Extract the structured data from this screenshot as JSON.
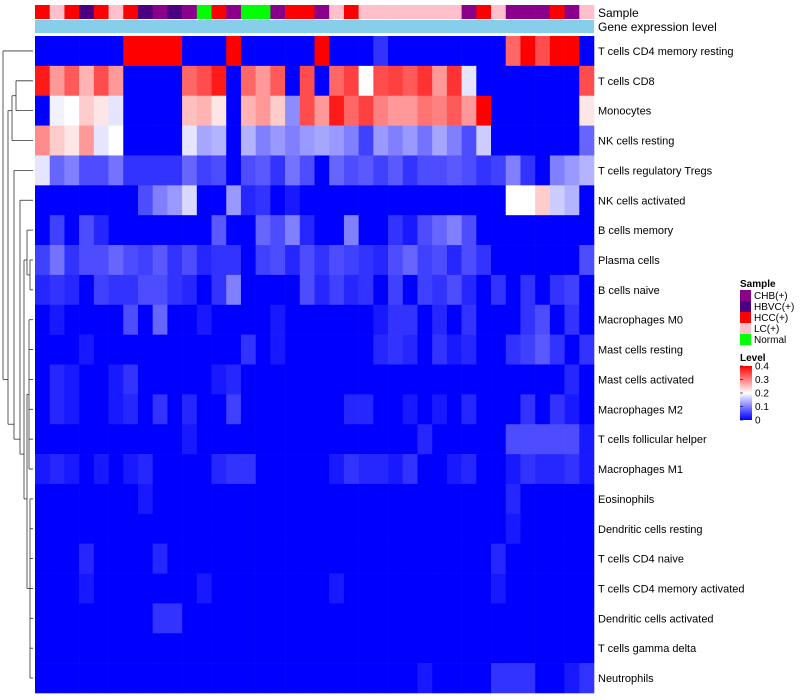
{
  "chart_data": {
    "type": "heatmap",
    "title": "",
    "annotations": {
      "sample_label": "Sample",
      "expression_label": "Gene expression level"
    },
    "sample_groups": {
      "CHB(+)": "#8B008B",
      "HBVC(+)": "#4B0082",
      "HCC(+)": "#FF0000",
      "LC(+)": "#FFC0CB",
      "Normal": "#00FF00"
    },
    "samples": [
      "HCC(+)",
      "LC(+)",
      "HCC(+)",
      "HBVC(+)",
      "HCC(+)",
      "LC(+)",
      "HCC(+)",
      "HBVC(+)",
      "CHB(+)",
      "HBVC(+)",
      "CHB(+)",
      "Normal",
      "HCC(+)",
      "CHB(+)",
      "Normal",
      "Normal",
      "CHB(+)",
      "HCC(+)",
      "HCC(+)",
      "CHB(+)",
      "LC(+)",
      "HCC(+)",
      "LC(+)",
      "LC(+)",
      "LC(+)",
      "LC(+)",
      "LC(+)",
      "LC(+)",
      "LC(+)",
      "CHB(+)",
      "HCC(+)",
      "LC(+)",
      "CHB(+)",
      "CHB(+)",
      "CHB(+)",
      "HCC(+)",
      "CHB(+)",
      "LC(+)"
    ],
    "expression_bar_color": "#87CEEB",
    "rows": [
      "T cells CD4 memory resting",
      "T cells CD8",
      "Monocytes",
      "NK cells resting",
      "T cells regulatory  Tregs",
      "NK cells activated",
      "B cells memory",
      "Plasma cells",
      "B cells naive",
      "Macrophages M0",
      "Mast cells resting",
      "Mast cells activated",
      "Macrophages M2",
      "T cells follicular helper",
      "Macrophages M1",
      "Eosinophils",
      "Dendritic cells resting",
      "T cells CD4 naive",
      "T cells CD4 memory activated",
      "Dendritic cells activated",
      "T cells gamma delta",
      "Neutrophils"
    ],
    "values": [
      [
        0.0,
        0.0,
        0.0,
        0.0,
        0.0,
        0.0,
        0.4,
        0.4,
        0.4,
        0.4,
        0.0,
        0.0,
        0.0,
        0.4,
        0.0,
        0.0,
        0.0,
        0.0,
        0.0,
        0.4,
        0.0,
        0.0,
        0.0,
        0.04,
        0.0,
        0.0,
        0.0,
        0.0,
        0.0,
        0.0,
        0.0,
        0.0,
        0.32,
        0.4,
        0.34,
        0.4,
        0.4,
        0.0
      ],
      [
        0.38,
        0.28,
        0.33,
        0.26,
        0.34,
        0.28,
        0.0,
        0.0,
        0.0,
        0.0,
        0.32,
        0.34,
        0.38,
        0.0,
        0.32,
        0.28,
        0.33,
        0.0,
        0.34,
        0.0,
        0.32,
        0.35,
        0.2,
        0.34,
        0.35,
        0.33,
        0.36,
        0.28,
        0.36,
        0.18,
        0.0,
        0.0,
        0.0,
        0.0,
        0.0,
        0.0,
        0.0,
        0.34
      ],
      [
        0.0,
        0.19,
        0.2,
        0.24,
        0.22,
        0.18,
        0.0,
        0.0,
        0.0,
        0.0,
        0.25,
        0.26,
        0.22,
        0.0,
        0.26,
        0.28,
        0.24,
        0.11,
        0.34,
        0.28,
        0.38,
        0.32,
        0.35,
        0.3,
        0.28,
        0.28,
        0.31,
        0.3,
        0.33,
        0.28,
        0.4,
        0.0,
        0.0,
        0.0,
        0.0,
        0.0,
        0.0,
        0.22
      ],
      [
        0.29,
        0.24,
        0.22,
        0.28,
        0.18,
        0.2,
        0.0,
        0.0,
        0.0,
        0.0,
        0.18,
        0.13,
        0.14,
        0.0,
        0.14,
        0.1,
        0.12,
        0.1,
        0.12,
        0.13,
        0.12,
        0.1,
        0.05,
        0.12,
        0.1,
        0.12,
        0.09,
        0.13,
        0.1,
        0.06,
        0.16,
        0.0,
        0.0,
        0.0,
        0.0,
        0.0,
        0.0,
        0.08
      ],
      [
        0.18,
        0.08,
        0.1,
        0.06,
        0.06,
        0.09,
        0.04,
        0.04,
        0.04,
        0.04,
        0.08,
        0.05,
        0.06,
        0.0,
        0.06,
        0.07,
        0.04,
        0.09,
        0.06,
        0.0,
        0.08,
        0.06,
        0.07,
        0.05,
        0.07,
        0.04,
        0.06,
        0.06,
        0.07,
        0.06,
        0.04,
        0.05,
        0.1,
        0.04,
        0.0,
        0.1,
        0.12,
        0.14
      ],
      [
        0.0,
        0.0,
        0.0,
        0.0,
        0.0,
        0.0,
        0.0,
        0.06,
        0.1,
        0.12,
        0.17,
        0.0,
        0.0,
        0.12,
        0.03,
        0.04,
        0.0,
        0.02,
        0.0,
        0.0,
        0.0,
        0.0,
        0.0,
        0.0,
        0.0,
        0.0,
        0.0,
        0.0,
        0.0,
        0.0,
        0.0,
        0.0,
        0.2,
        0.2,
        0.24,
        0.16,
        0.14,
        0.0
      ],
      [
        0.0,
        0.05,
        0.0,
        0.06,
        0.03,
        0.0,
        0.0,
        0.0,
        0.0,
        0.0,
        0.0,
        0.0,
        0.07,
        0.0,
        0.0,
        0.08,
        0.06,
        0.1,
        0.03,
        0.0,
        0.0,
        0.1,
        0.0,
        0.0,
        0.04,
        0.02,
        0.06,
        0.08,
        0.1,
        0.06,
        0.0,
        0.0,
        0.0,
        0.0,
        0.0,
        0.0,
        0.0,
        0.0
      ],
      [
        0.05,
        0.09,
        0.04,
        0.06,
        0.06,
        0.08,
        0.06,
        0.05,
        0.07,
        0.04,
        0.06,
        0.03,
        0.04,
        0.04,
        0.0,
        0.05,
        0.06,
        0.03,
        0.06,
        0.04,
        0.06,
        0.05,
        0.04,
        0.03,
        0.06,
        0.08,
        0.05,
        0.06,
        0.03,
        0.06,
        0.04,
        0.0,
        0.0,
        0.0,
        0.0,
        0.0,
        0.0,
        0.06
      ],
      [
        0.03,
        0.04,
        0.03,
        0.0,
        0.05,
        0.04,
        0.04,
        0.06,
        0.06,
        0.04,
        0.03,
        0.0,
        0.04,
        0.1,
        0.0,
        0.0,
        0.0,
        0.0,
        0.06,
        0.03,
        0.05,
        0.03,
        0.04,
        0.0,
        0.05,
        0.0,
        0.05,
        0.04,
        0.06,
        0.03,
        0.0,
        0.04,
        0.0,
        0.04,
        0.0,
        0.04,
        0.05,
        0.0
      ],
      [
        0.0,
        0.02,
        0.0,
        0.0,
        0.0,
        0.0,
        0.06,
        0.0,
        0.08,
        0.0,
        0.0,
        0.02,
        0.0,
        0.0,
        0.0,
        0.0,
        0.02,
        0.0,
        0.0,
        0.0,
        0.0,
        0.0,
        0.0,
        0.02,
        0.04,
        0.04,
        0.0,
        0.03,
        0.0,
        0.04,
        0.0,
        0.0,
        0.0,
        0.04,
        0.06,
        0.0,
        0.04,
        0.0
      ],
      [
        0.0,
        0.0,
        0.0,
        0.02,
        0.0,
        0.0,
        0.0,
        0.0,
        0.0,
        0.0,
        0.0,
        0.0,
        0.0,
        0.0,
        0.04,
        0.0,
        0.02,
        0.0,
        0.0,
        0.0,
        0.0,
        0.0,
        0.0,
        0.03,
        0.04,
        0.03,
        0.0,
        0.04,
        0.02,
        0.03,
        0.0,
        0.0,
        0.04,
        0.05,
        0.07,
        0.04,
        0.0,
        0.04
      ],
      [
        0.0,
        0.03,
        0.02,
        0.0,
        0.0,
        0.02,
        0.04,
        0.0,
        0.0,
        0.0,
        0.0,
        0.0,
        0.02,
        0.03,
        0.0,
        0.0,
        0.0,
        0.0,
        0.0,
        0.0,
        0.0,
        0.0,
        0.0,
        0.0,
        0.0,
        0.0,
        0.0,
        0.0,
        0.0,
        0.0,
        0.0,
        0.0,
        0.0,
        0.0,
        0.0,
        0.0,
        0.03,
        0.0
      ],
      [
        0.0,
        0.03,
        0.02,
        0.0,
        0.0,
        0.02,
        0.03,
        0.0,
        0.04,
        0.0,
        0.03,
        0.0,
        0.0,
        0.05,
        0.0,
        0.0,
        0.0,
        0.0,
        0.0,
        0.0,
        0.0,
        0.03,
        0.03,
        0.0,
        0.0,
        0.02,
        0.0,
        0.02,
        0.0,
        0.03,
        0.0,
        0.0,
        0.0,
        0.04,
        0.0,
        0.04,
        0.02,
        0.0
      ],
      [
        0.0,
        0.0,
        0.0,
        0.0,
        0.0,
        0.0,
        0.0,
        0.0,
        0.0,
        0.0,
        0.02,
        0.0,
        0.0,
        0.0,
        0.0,
        0.0,
        0.0,
        0.0,
        0.0,
        0.0,
        0.0,
        0.0,
        0.0,
        0.0,
        0.0,
        0.0,
        0.03,
        0.0,
        0.0,
        0.0,
        0.0,
        0.0,
        0.06,
        0.06,
        0.06,
        0.06,
        0.06,
        0.02
      ],
      [
        0.02,
        0.03,
        0.02,
        0.0,
        0.02,
        0.0,
        0.02,
        0.03,
        0.0,
        0.0,
        0.0,
        0.0,
        0.03,
        0.04,
        0.04,
        0.0,
        0.0,
        0.0,
        0.0,
        0.0,
        0.02,
        0.04,
        0.03,
        0.03,
        0.02,
        0.04,
        0.0,
        0.0,
        0.02,
        0.03,
        0.0,
        0.0,
        0.02,
        0.04,
        0.03,
        0.03,
        0.04,
        0.02
      ],
      [
        0.0,
        0.0,
        0.0,
        0.0,
        0.0,
        0.0,
        0.0,
        0.02,
        0.0,
        0.0,
        0.0,
        0.0,
        0.0,
        0.0,
        0.0,
        0.0,
        0.0,
        0.0,
        0.0,
        0.0,
        0.0,
        0.0,
        0.0,
        0.0,
        0.0,
        0.0,
        0.0,
        0.0,
        0.0,
        0.0,
        0.0,
        0.0,
        0.03,
        0.0,
        0.0,
        0.0,
        0.0,
        0.0
      ],
      [
        0.0,
        0.0,
        0.0,
        0.0,
        0.0,
        0.0,
        0.0,
        0.0,
        0.0,
        0.0,
        0.0,
        0.0,
        0.0,
        0.0,
        0.0,
        0.0,
        0.0,
        0.0,
        0.0,
        0.0,
        0.0,
        0.0,
        0.0,
        0.0,
        0.0,
        0.0,
        0.0,
        0.0,
        0.0,
        0.0,
        0.0,
        0.0,
        0.02,
        0.0,
        0.0,
        0.0,
        0.0,
        0.0
      ],
      [
        0.0,
        0.0,
        0.0,
        0.03,
        0.0,
        0.0,
        0.0,
        0.0,
        0.03,
        0.0,
        0.0,
        0.0,
        0.0,
        0.0,
        0.0,
        0.0,
        0.0,
        0.0,
        0.0,
        0.0,
        0.0,
        0.0,
        0.0,
        0.0,
        0.0,
        0.0,
        0.0,
        0.0,
        0.0,
        0.0,
        0.0,
        0.03,
        0.0,
        0.0,
        0.0,
        0.0,
        0.0,
        0.0
      ],
      [
        0.0,
        0.0,
        0.0,
        0.02,
        0.0,
        0.0,
        0.0,
        0.0,
        0.0,
        0.0,
        0.0,
        0.02,
        0.0,
        0.0,
        0.0,
        0.0,
        0.0,
        0.0,
        0.0,
        0.0,
        0.02,
        0.0,
        0.0,
        0.0,
        0.0,
        0.0,
        0.0,
        0.0,
        0.0,
        0.0,
        0.0,
        0.02,
        0.0,
        0.0,
        0.0,
        0.0,
        0.0,
        0.0
      ],
      [
        0.0,
        0.0,
        0.0,
        0.0,
        0.0,
        0.0,
        0.0,
        0.0,
        0.04,
        0.04,
        0.0,
        0.0,
        0.0,
        0.0,
        0.0,
        0.0,
        0.0,
        0.0,
        0.0,
        0.0,
        0.0,
        0.0,
        0.0,
        0.0,
        0.0,
        0.0,
        0.0,
        0.0,
        0.0,
        0.0,
        0.0,
        0.0,
        0.0,
        0.0,
        0.0,
        0.0,
        0.0,
        0.0
      ],
      [
        0.0,
        0.0,
        0.0,
        0.0,
        0.0,
        0.0,
        0.0,
        0.0,
        0.0,
        0.0,
        0.0,
        0.0,
        0.0,
        0.0,
        0.0,
        0.0,
        0.0,
        0.0,
        0.0,
        0.0,
        0.0,
        0.0,
        0.0,
        0.0,
        0.0,
        0.0,
        0.0,
        0.0,
        0.0,
        0.0,
        0.0,
        0.0,
        0.0,
        0.0,
        0.0,
        0.0,
        0.0,
        0.0
      ],
      [
        0.0,
        0.0,
        0.0,
        0.0,
        0.0,
        0.0,
        0.0,
        0.0,
        0.0,
        0.0,
        0.0,
        0.0,
        0.0,
        0.0,
        0.0,
        0.0,
        0.0,
        0.0,
        0.0,
        0.0,
        0.0,
        0.0,
        0.0,
        0.0,
        0.0,
        0.0,
        0.02,
        0.0,
        0.0,
        0.0,
        0.0,
        0.04,
        0.04,
        0.04,
        0.0,
        0.0,
        0.02,
        0.04
      ]
    ],
    "color_scale": {
      "min": 0,
      "max": 0.4,
      "stops": [
        [
          0,
          "#0000FF"
        ],
        [
          0.2,
          "#FFFFFF"
        ],
        [
          0.4,
          "#FF0000"
        ]
      ]
    },
    "legend": {
      "sample_title": "Sample",
      "level_title": "Level",
      "level_ticks": [
        0.4,
        0.3,
        0.2,
        0.1,
        0
      ],
      "level_tick_labels": [
        "0.4",
        "0.3",
        "0.2",
        "0.1",
        "0"
      ]
    }
  }
}
